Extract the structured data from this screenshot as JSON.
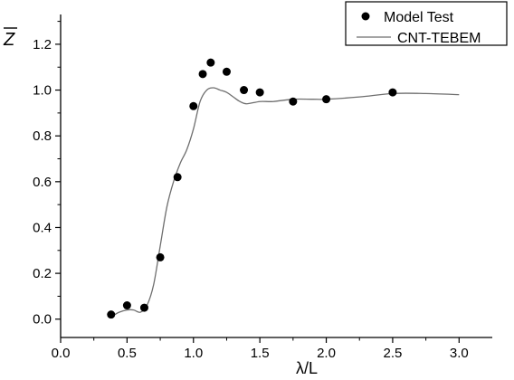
{
  "chart_data": {
    "type": "scatter",
    "xlabel": "λ/L",
    "ylabel": "Z",
    "xlim": [
      0.0,
      3.25
    ],
    "ylim": [
      -0.08,
      1.33
    ],
    "x_ticks": [
      "0.0",
      "0.5",
      "1.0",
      "1.5",
      "2.0",
      "2.5",
      "3.0"
    ],
    "x_tick_values": [
      0.0,
      0.5,
      1.0,
      1.5,
      2.0,
      2.5,
      3.0
    ],
    "y_ticks": [
      "0.0",
      "0.2",
      "0.4",
      "0.6",
      "0.8",
      "1.0",
      "1.2"
    ],
    "y_tick_values": [
      0.0,
      0.2,
      0.4,
      0.6,
      0.8,
      1.0,
      1.2
    ],
    "legend_position": "top-right",
    "grid": false,
    "series": [
      {
        "name": "Model Test",
        "style": "markers",
        "color": "#000000",
        "x": [
          0.38,
          0.5,
          0.63,
          0.75,
          0.88,
          1.0,
          1.07,
          1.13,
          1.25,
          1.38,
          1.5,
          1.75,
          2.0,
          2.5
        ],
        "y": [
          0.02,
          0.06,
          0.05,
          0.27,
          0.62,
          0.93,
          1.07,
          1.12,
          1.08,
          1.0,
          0.99,
          0.95,
          0.96,
          0.99
        ]
      },
      {
        "name": "CNT-TEBEM",
        "style": "line",
        "color": "#6e6e6e",
        "x": [
          0.38,
          0.44,
          0.5,
          0.55,
          0.6,
          0.65,
          0.7,
          0.75,
          0.8,
          0.85,
          0.9,
          0.95,
          1.0,
          1.05,
          1.1,
          1.15,
          1.2,
          1.25,
          1.3,
          1.35,
          1.4,
          1.5,
          1.6,
          1.75,
          1.9,
          2.0,
          2.25,
          2.5,
          2.75,
          3.0
        ],
        "y": [
          0.01,
          0.03,
          0.04,
          0.04,
          0.03,
          0.06,
          0.15,
          0.32,
          0.49,
          0.6,
          0.68,
          0.74,
          0.83,
          0.95,
          1.0,
          1.01,
          1.0,
          0.99,
          0.97,
          0.95,
          0.94,
          0.95,
          0.95,
          0.96,
          0.96,
          0.96,
          0.97,
          0.985,
          0.985,
          0.98
        ]
      }
    ]
  }
}
